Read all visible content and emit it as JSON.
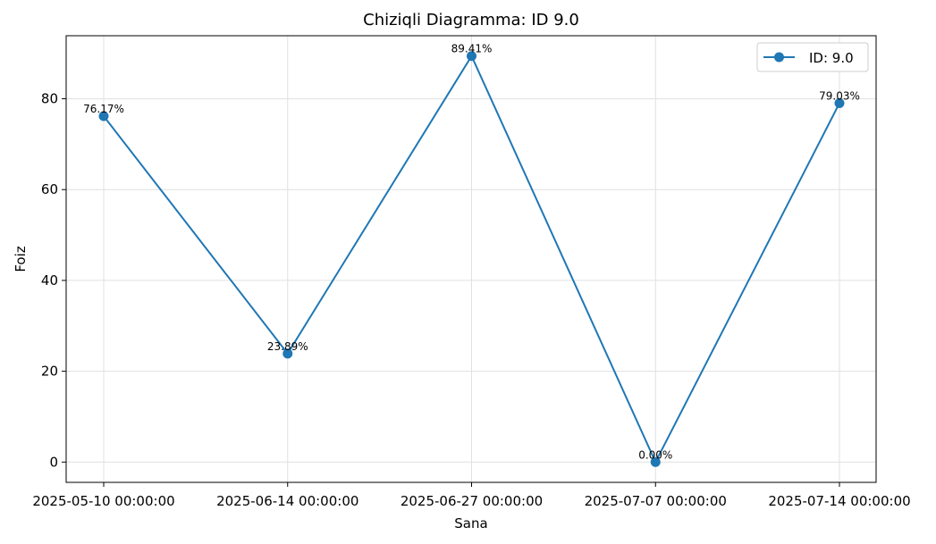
{
  "chart_data": {
    "type": "line",
    "title": "Chiziqli Diagramma: ID 9.0",
    "xlabel": "Sana",
    "ylabel": "Foiz",
    "categories": [
      "2025-05-10 00:00:00",
      "2025-06-14 00:00:00",
      "2025-06-27 00:00:00",
      "2025-07-07 00:00:00",
      "2025-07-14 00:00:00"
    ],
    "series": [
      {
        "name": "ID: 9.0",
        "values": [
          76.17,
          23.89,
          89.41,
          0.0,
          79.03
        ],
        "color": "#1f77b4"
      }
    ],
    "data_labels": [
      "76.17%",
      "23.89%",
      "89.41%",
      "0.00%",
      "79.03%"
    ],
    "yticks": [
      0,
      20,
      40,
      60,
      80
    ],
    "ylim": [
      -4.47,
      93.88
    ],
    "grid": true,
    "legend_position": "top-right"
  }
}
